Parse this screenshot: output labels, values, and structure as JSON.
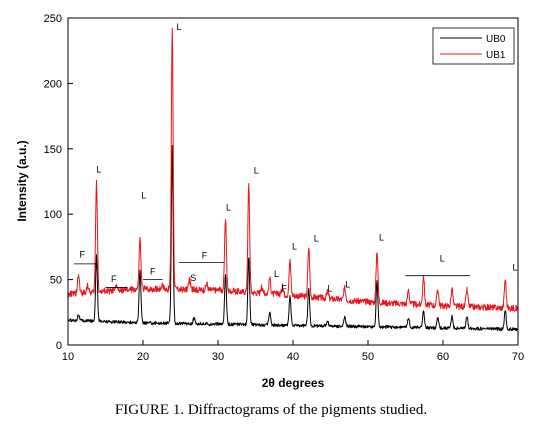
{
  "chart_data": {
    "type": "line",
    "xlabel": "2θ degrees",
    "ylabel": "Intensity (a.u.)",
    "xlim": [
      10,
      70
    ],
    "ylim": [
      0,
      250
    ],
    "x_ticks": [
      10,
      20,
      30,
      40,
      50,
      60,
      70
    ],
    "y_ticks": [
      0,
      50,
      100,
      150,
      200,
      250
    ],
    "legend_position": "top-right",
    "series": [
      {
        "name": "UB0",
        "color": "#000000",
        "baseline": [
          [
            10,
            19
          ],
          [
            20,
            17
          ],
          [
            30,
            16
          ],
          [
            40,
            15
          ],
          [
            50,
            14
          ],
          [
            60,
            13
          ],
          [
            70,
            12
          ]
        ],
        "peaks": [
          [
            11.4,
            5
          ],
          [
            13.8,
            50
          ],
          [
            19.6,
            40
          ],
          [
            23.9,
            135
          ],
          [
            26.8,
            4
          ],
          [
            31.0,
            38
          ],
          [
            34.1,
            52
          ],
          [
            36.9,
            10
          ],
          [
            39.6,
            22
          ],
          [
            42.1,
            28
          ],
          [
            44.6,
            4
          ],
          [
            46.9,
            7
          ],
          [
            51.2,
            35
          ],
          [
            55.4,
            7
          ],
          [
            57.4,
            13
          ],
          [
            59.3,
            8
          ],
          [
            61.2,
            9
          ],
          [
            63.2,
            9
          ],
          [
            68.3,
            15
          ]
        ]
      },
      {
        "name": "UB1",
        "color": "#e8141e",
        "baseline": [
          [
            10,
            39
          ],
          [
            20,
            43
          ],
          [
            30,
            42
          ],
          [
            40,
            38
          ],
          [
            50,
            33
          ],
          [
            60,
            30
          ],
          [
            70,
            28
          ]
        ],
        "peaks": [
          [
            11.4,
            14
          ],
          [
            12.6,
            6
          ],
          [
            13.8,
            85
          ],
          [
            16.5,
            4
          ],
          [
            19.6,
            38
          ],
          [
            22.6,
            4
          ],
          [
            23.9,
            200
          ],
          [
            26.2,
            8
          ],
          [
            28.5,
            5
          ],
          [
            31.0,
            56
          ],
          [
            34.1,
            82
          ],
          [
            35.8,
            4
          ],
          [
            36.9,
            12
          ],
          [
            38.6,
            6
          ],
          [
            39.6,
            26
          ],
          [
            42.1,
            38
          ],
          [
            44.6,
            5
          ],
          [
            46.9,
            9
          ],
          [
            51.2,
            40
          ],
          [
            55.4,
            11
          ],
          [
            57.4,
            22
          ],
          [
            59.3,
            13
          ],
          [
            61.2,
            13
          ],
          [
            63.2,
            13
          ],
          [
            68.3,
            22
          ]
        ]
      }
    ],
    "annotations": [
      {
        "text": "L",
        "x": 24.8,
        "y": 241
      },
      {
        "text": "L",
        "x": 14.1,
        "y": 132
      },
      {
        "text": "L",
        "x": 20.1,
        "y": 112
      },
      {
        "text": "L",
        "x": 35.1,
        "y": 131
      },
      {
        "text": "L",
        "x": 31.4,
        "y": 103
      },
      {
        "text": "L",
        "x": 40.2,
        "y": 73
      },
      {
        "text": "L",
        "x": 43.1,
        "y": 79
      },
      {
        "text": "L",
        "x": 37.8,
        "y": 52
      },
      {
        "text": "L",
        "x": 51.8,
        "y": 80
      },
      {
        "text": "L",
        "x": 44.9,
        "y": 41
      },
      {
        "text": "L",
        "x": 47.3,
        "y": 44
      },
      {
        "text": "L",
        "x": 69.6,
        "y": 57
      },
      {
        "text": "L",
        "x": 59.9,
        "y": 64
      },
      {
        "text": "F",
        "x": 11.9,
        "y": 67
      },
      {
        "text": "F",
        "x": 16.1,
        "y": 48
      },
      {
        "text": "F",
        "x": 21.3,
        "y": 54
      },
      {
        "text": "F",
        "x": 28.2,
        "y": 66
      },
      {
        "text": "S",
        "x": 26.7,
        "y": 49
      },
      {
        "text": "F",
        "x": 38.8,
        "y": 41
      }
    ],
    "ranges": [
      {
        "x1": 10.8,
        "x2": 13.8,
        "y": 62
      },
      {
        "x1": 15.0,
        "x2": 17.9,
        "y": 44
      },
      {
        "x1": 20.0,
        "x2": 22.6,
        "y": 50
      },
      {
        "x1": 24.8,
        "x2": 30.8,
        "y": 63
      },
      {
        "x1": 55.0,
        "x2": 63.6,
        "y": 53
      }
    ]
  },
  "caption": "FIGURE 1.  Diffractograms of the pigments studied."
}
